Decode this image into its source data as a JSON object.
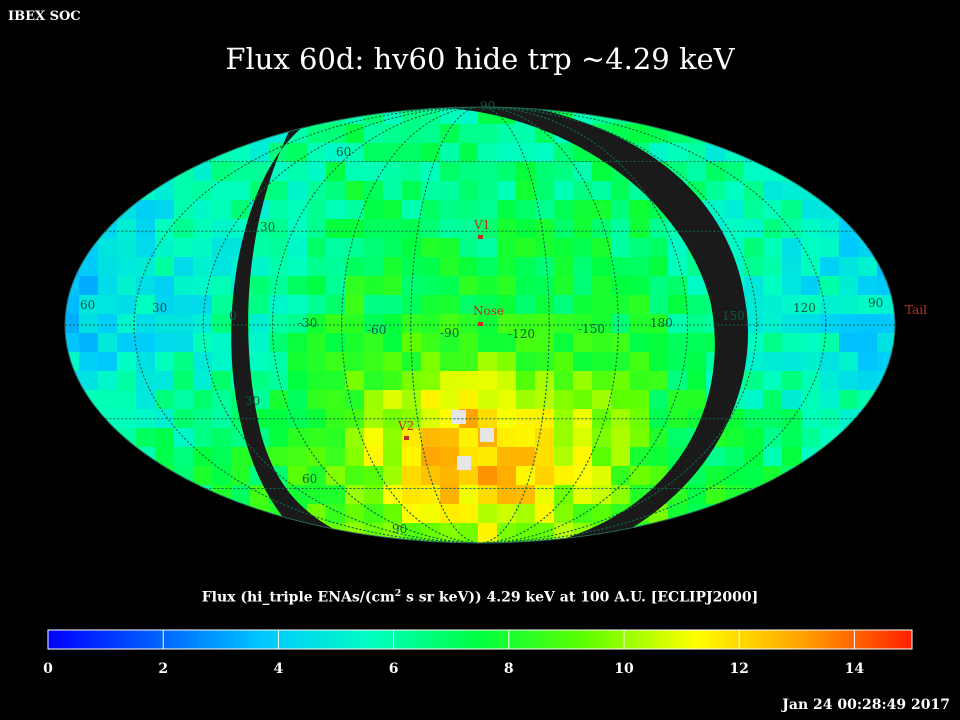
{
  "header": {
    "org": "IBEX SOC",
    "title": "Flux   60d: hv60 hide trp ~4.29 keV"
  },
  "map": {
    "projection": "mollweide",
    "grid_labels": {
      "lat": [
        "90",
        "60",
        "30",
        "30",
        "60",
        "90"
      ],
      "lon": [
        "60",
        "30",
        "0",
        "-30",
        "-60",
        "-90",
        "-120",
        "-150",
        "180",
        "150",
        "120",
        "90"
      ]
    },
    "markers": [
      {
        "name": "V1",
        "label": "V1"
      },
      {
        "name": "Nose",
        "label": "Nose"
      },
      {
        "name": "V2",
        "label": "V2"
      },
      {
        "name": "Tail",
        "label": "Tail"
      }
    ],
    "colors": {
      "grid": "#0a6a4a",
      "marker": "#c03020",
      "gap": "#1a1a1a"
    }
  },
  "colorbar": {
    "title_pre": "Flux (hi_triple ENAs/(cm",
    "title_sup": "2",
    "title_post": " s sr keV))  4.29 keV at 100 A.U. [ECLIPJ2000]",
    "ticks": [
      "0",
      "2",
      "4",
      "6",
      "8",
      "10",
      "12",
      "14"
    ],
    "range": [
      0,
      15
    ],
    "colors": [
      "#0000ff",
      "#0060ff",
      "#00c8ff",
      "#00ffc0",
      "#00ff40",
      "#60ff00",
      "#ffff00",
      "#ffa000",
      "#ff2000"
    ]
  },
  "footer": {
    "timestamp": "Jan 24 00:28:49 2017"
  }
}
